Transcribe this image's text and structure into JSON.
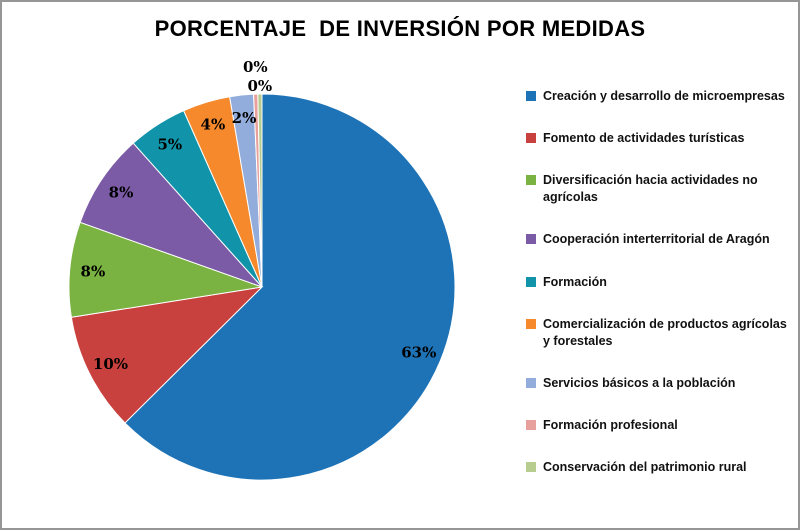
{
  "frame": {
    "border_color": "#969696",
    "background": "#ffffff"
  },
  "chart_data": {
    "type": "pie",
    "title": "PORCENTAJE  DE INVERSIÓN POR MEDIDAS",
    "categories": [
      "Creación y desarrollo de microempresas",
      "Fomento de actividades turísticas",
      "Diversificación hacia actividades no agrícolas",
      "Cooperación interterritorial de Aragón",
      "Formación",
      "Comercialización de productos agrícolas y forestales",
      "Servicios básicos a la población",
      "Formación profesional",
      "Conservación del patrimonio rural"
    ],
    "values": [
      63,
      10,
      8,
      8,
      5,
      4,
      2,
      0,
      0
    ],
    "data_labels": [
      "63%",
      "10%",
      "8%",
      "8%",
      "5%",
      "4%",
      "2%",
      "0%",
      "0%"
    ],
    "colors": [
      "#1E73B7",
      "#C9413E",
      "#7AB341",
      "#7B5BA5",
      "#1193A9",
      "#F5892B",
      "#92ACDB",
      "#E8A09C",
      "#B7CD90"
    ],
    "label_color": "#000000",
    "legend_position": "right",
    "direction": "clockwise",
    "start_angle": 0
  }
}
